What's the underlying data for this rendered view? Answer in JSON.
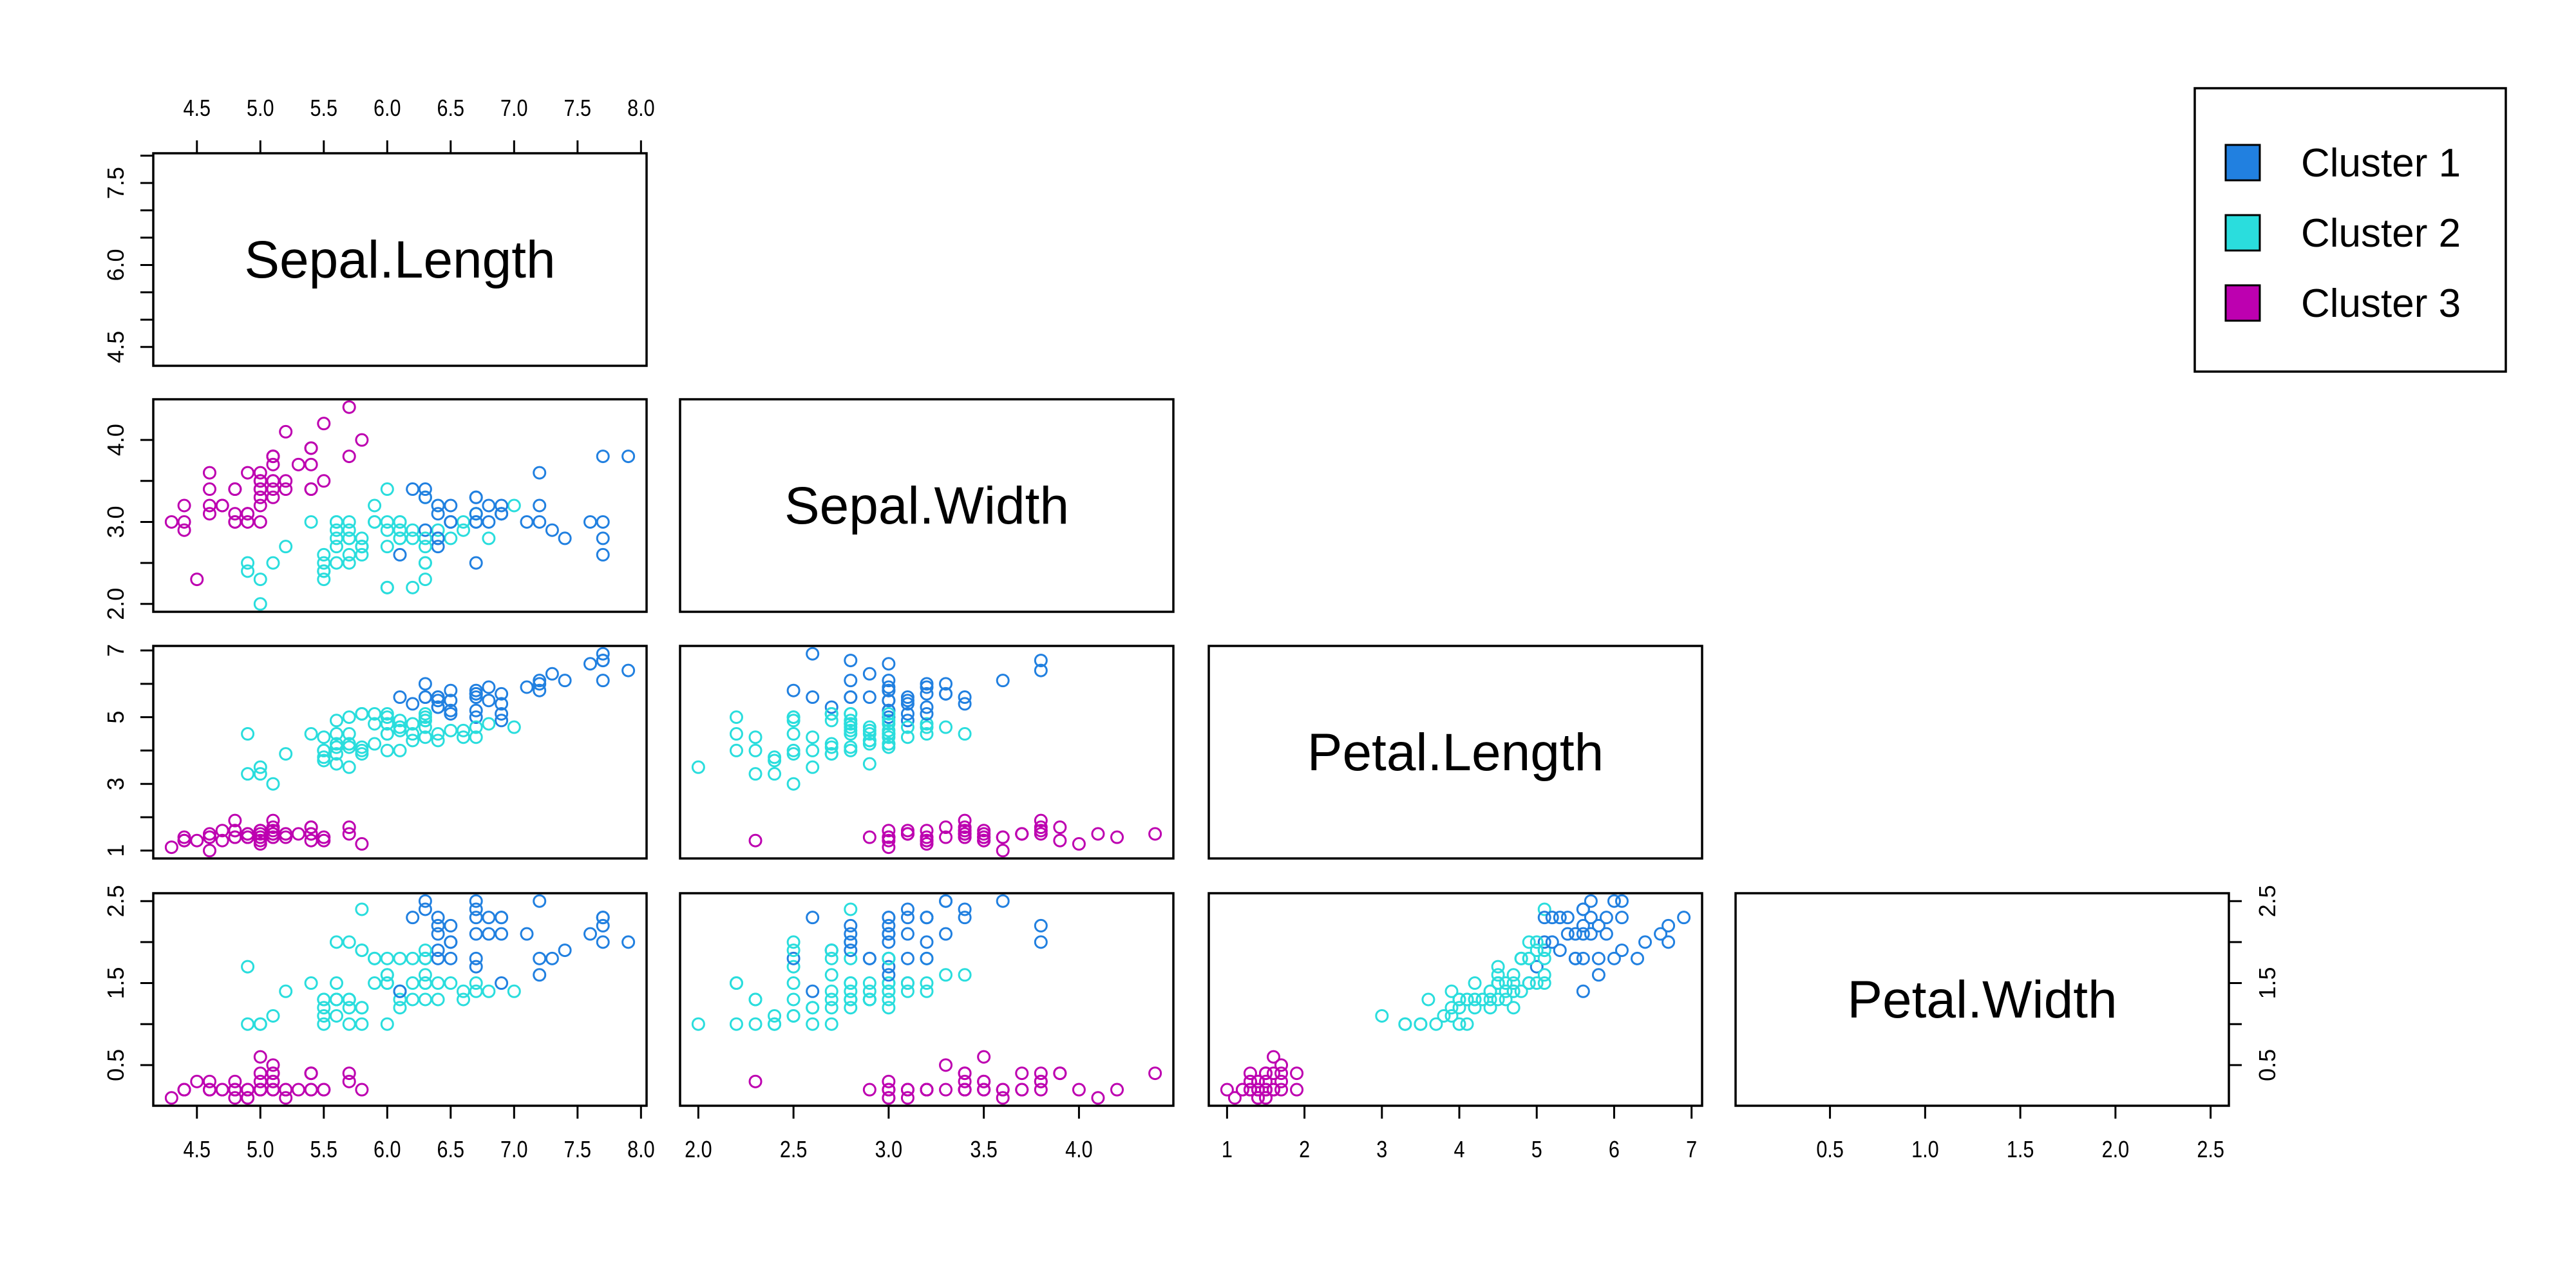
{
  "chart_data": {
    "type": "scatter",
    "title": "",
    "variables": [
      "Sepal.Length",
      "Sepal.Width",
      "Petal.Length",
      "Petal.Width"
    ],
    "ranges": [
      [
        4.3,
        7.9
      ],
      [
        2.0,
        4.4
      ],
      [
        1.0,
        6.9
      ],
      [
        0.1,
        2.5
      ]
    ],
    "axes": {
      "top": {
        "var": 0,
        "ticks": [
          4.5,
          5.0,
          5.5,
          6.0,
          6.5,
          7.0,
          7.5,
          8.0
        ],
        "labels": [
          "4.5",
          "5.0",
          "5.5",
          "6.0",
          "6.5",
          "7.0",
          "7.5",
          "8.0"
        ]
      },
      "left": [
        {
          "var": 0,
          "ticks": [
            4.5,
            5.0,
            5.5,
            6.0,
            6.5,
            7.0,
            7.5,
            8.0
          ],
          "labels": [
            "4.5",
            "",
            "",
            "6.0",
            "",
            "",
            "7.5",
            ""
          ]
        },
        {
          "var": 1,
          "ticks": [
            2.0,
            2.5,
            3.0,
            3.5,
            4.0
          ],
          "labels": [
            "2.0",
            "",
            "3.0",
            "",
            "4.0"
          ]
        },
        {
          "var": 2,
          "ticks": [
            1,
            2,
            3,
            4,
            5,
            6,
            7
          ],
          "labels": [
            "1",
            "",
            "3",
            "",
            "5",
            "",
            "7"
          ]
        },
        {
          "var": 3,
          "ticks": [
            0.5,
            1.0,
            1.5,
            2.0,
            2.5
          ],
          "labels": [
            "0.5",
            "",
            "1.5",
            "",
            "2.5"
          ]
        }
      ],
      "right": {
        "var": 3,
        "ticks": [
          0.5,
          1.0,
          1.5,
          2.0,
          2.5
        ],
        "labels": [
          "0.5",
          "",
          "1.5",
          "",
          "2.5"
        ]
      },
      "bottom": [
        {
          "var": 0,
          "ticks": [
            4.5,
            5.0,
            5.5,
            6.0,
            6.5,
            7.0,
            7.5,
            8.0
          ],
          "labels": [
            "4.5",
            "5.0",
            "5.5",
            "6.0",
            "6.5",
            "7.0",
            "7.5",
            "8.0"
          ]
        },
        {
          "var": 1,
          "ticks": [
            2.0,
            2.5,
            3.0,
            3.5,
            4.0
          ],
          "labels": [
            "2.0",
            "2.5",
            "3.0",
            "3.5",
            "4.0"
          ]
        },
        {
          "var": 2,
          "ticks": [
            1,
            2,
            3,
            4,
            5,
            6,
            7
          ],
          "labels": [
            "1",
            "2",
            "3",
            "4",
            "5",
            "6",
            "7"
          ]
        },
        {
          "var": 3,
          "ticks": [
            0.5,
            1.0,
            1.5,
            2.0,
            2.5
          ],
          "labels": [
            "0.5",
            "1.0",
            "1.5",
            "2.0",
            "2.5"
          ]
        }
      ]
    },
    "legend": {
      "placement": "top-right",
      "entries": [
        {
          "label": "Cluster 1",
          "color": "#2180E0"
        },
        {
          "label": "Cluster 2",
          "color": "#2ADDDD"
        },
        {
          "label": "Cluster 3",
          "color": "#BD00B0"
        }
      ]
    },
    "points_columns": [
      "Sepal.Length",
      "Sepal.Width",
      "Petal.Length",
      "Petal.Width",
      "cluster"
    ],
    "points": [
      [
        5.1,
        3.5,
        1.4,
        0.2,
        3
      ],
      [
        4.9,
        3.0,
        1.4,
        0.2,
        3
      ],
      [
        4.7,
        3.2,
        1.3,
        0.2,
        3
      ],
      [
        4.6,
        3.1,
        1.5,
        0.2,
        3
      ],
      [
        5.0,
        3.6,
        1.4,
        0.2,
        3
      ],
      [
        5.4,
        3.9,
        1.7,
        0.4,
        3
      ],
      [
        4.6,
        3.4,
        1.4,
        0.3,
        3
      ],
      [
        5.0,
        3.4,
        1.5,
        0.2,
        3
      ],
      [
        4.4,
        2.9,
        1.4,
        0.2,
        3
      ],
      [
        4.9,
        3.1,
        1.5,
        0.1,
        3
      ],
      [
        5.4,
        3.7,
        1.5,
        0.2,
        3
      ],
      [
        4.8,
        3.4,
        1.6,
        0.2,
        3
      ],
      [
        4.8,
        3.0,
        1.4,
        0.1,
        3
      ],
      [
        4.3,
        3.0,
        1.1,
        0.1,
        3
      ],
      [
        5.8,
        4.0,
        1.2,
        0.2,
        3
      ],
      [
        5.7,
        4.4,
        1.5,
        0.4,
        3
      ],
      [
        5.4,
        3.9,
        1.3,
        0.4,
        3
      ],
      [
        5.1,
        3.5,
        1.4,
        0.3,
        3
      ],
      [
        5.7,
        3.8,
        1.7,
        0.3,
        3
      ],
      [
        5.1,
        3.8,
        1.5,
        0.3,
        3
      ],
      [
        5.4,
        3.4,
        1.7,
        0.2,
        3
      ],
      [
        5.1,
        3.7,
        1.5,
        0.4,
        3
      ],
      [
        4.6,
        3.6,
        1.0,
        0.2,
        3
      ],
      [
        5.1,
        3.3,
        1.7,
        0.5,
        3
      ],
      [
        4.8,
        3.4,
        1.9,
        0.2,
        3
      ],
      [
        5.0,
        3.0,
        1.6,
        0.2,
        3
      ],
      [
        5.0,
        3.4,
        1.6,
        0.4,
        3
      ],
      [
        5.2,
        3.5,
        1.5,
        0.2,
        3
      ],
      [
        5.2,
        3.4,
        1.4,
        0.2,
        3
      ],
      [
        4.7,
        3.2,
        1.6,
        0.2,
        3
      ],
      [
        4.8,
        3.1,
        1.6,
        0.2,
        3
      ],
      [
        5.4,
        3.4,
        1.5,
        0.4,
        3
      ],
      [
        5.2,
        4.1,
        1.5,
        0.1,
        3
      ],
      [
        5.5,
        4.2,
        1.4,
        0.2,
        3
      ],
      [
        4.9,
        3.1,
        1.5,
        0.2,
        3
      ],
      [
        5.0,
        3.2,
        1.2,
        0.2,
        3
      ],
      [
        5.5,
        3.5,
        1.3,
        0.2,
        3
      ],
      [
        4.9,
        3.6,
        1.4,
        0.1,
        3
      ],
      [
        4.4,
        3.0,
        1.3,
        0.2,
        3
      ],
      [
        5.1,
        3.4,
        1.5,
        0.2,
        3
      ],
      [
        5.0,
        3.5,
        1.3,
        0.3,
        3
      ],
      [
        4.5,
        2.3,
        1.3,
        0.3,
        3
      ],
      [
        4.4,
        3.2,
        1.3,
        0.2,
        3
      ],
      [
        5.0,
        3.5,
        1.6,
        0.6,
        3
      ],
      [
        5.1,
        3.8,
        1.9,
        0.4,
        3
      ],
      [
        4.8,
        3.0,
        1.4,
        0.3,
        3
      ],
      [
        5.1,
        3.8,
        1.6,
        0.2,
        3
      ],
      [
        4.6,
        3.2,
        1.4,
        0.2,
        3
      ],
      [
        5.3,
        3.7,
        1.5,
        0.2,
        3
      ],
      [
        5.0,
        3.3,
        1.4,
        0.2,
        3
      ],
      [
        7.0,
        3.2,
        4.7,
        1.4,
        2
      ],
      [
        6.4,
        3.2,
        4.5,
        1.5,
        2
      ],
      [
        6.9,
        3.1,
        4.9,
        1.5,
        1
      ],
      [
        5.5,
        2.3,
        4.0,
        1.3,
        2
      ],
      [
        6.5,
        2.8,
        4.6,
        1.5,
        2
      ],
      [
        5.7,
        2.8,
        4.5,
        1.3,
        2
      ],
      [
        6.3,
        3.3,
        4.7,
        1.6,
        2
      ],
      [
        4.9,
        2.4,
        3.3,
        1.0,
        2
      ],
      [
        6.6,
        2.9,
        4.6,
        1.3,
        2
      ],
      [
        5.2,
        2.7,
        3.9,
        1.4,
        2
      ],
      [
        5.0,
        2.0,
        3.5,
        1.0,
        2
      ],
      [
        5.9,
        3.0,
        4.2,
        1.5,
        2
      ],
      [
        6.0,
        2.2,
        4.0,
        1.0,
        2
      ],
      [
        6.1,
        2.9,
        4.7,
        1.4,
        2
      ],
      [
        5.6,
        2.9,
        3.6,
        1.3,
        2
      ],
      [
        6.7,
        3.1,
        4.4,
        1.4,
        2
      ],
      [
        5.6,
        3.0,
        4.5,
        1.5,
        2
      ],
      [
        5.8,
        2.7,
        4.1,
        1.0,
        2
      ],
      [
        6.2,
        2.2,
        4.5,
        1.5,
        2
      ],
      [
        5.6,
        2.5,
        3.9,
        1.1,
        2
      ],
      [
        5.9,
        3.2,
        4.8,
        1.8,
        2
      ],
      [
        6.1,
        2.8,
        4.0,
        1.3,
        2
      ],
      [
        6.3,
        2.5,
        4.9,
        1.5,
        2
      ],
      [
        6.1,
        2.8,
        4.7,
        1.2,
        2
      ],
      [
        6.4,
        2.9,
        4.3,
        1.3,
        2
      ],
      [
        6.6,
        3.0,
        4.4,
        1.4,
        2
      ],
      [
        6.8,
        2.8,
        4.8,
        1.4,
        2
      ],
      [
        6.7,
        3.0,
        5.0,
        1.7,
        1
      ],
      [
        6.0,
        2.9,
        4.5,
        1.5,
        2
      ],
      [
        5.7,
        2.6,
        3.5,
        1.0,
        2
      ],
      [
        5.5,
        2.4,
        3.8,
        1.1,
        2
      ],
      [
        5.5,
        2.4,
        3.7,
        1.0,
        2
      ],
      [
        5.8,
        2.7,
        3.9,
        1.2,
        2
      ],
      [
        6.0,
        2.7,
        5.1,
        1.6,
        2
      ],
      [
        5.4,
        3.0,
        4.5,
        1.5,
        2
      ],
      [
        6.0,
        3.4,
        4.5,
        1.6,
        2
      ],
      [
        6.7,
        3.1,
        4.7,
        1.5,
        2
      ],
      [
        6.3,
        2.3,
        4.4,
        1.3,
        2
      ],
      [
        5.6,
        3.0,
        4.1,
        1.3,
        2
      ],
      [
        5.5,
        2.5,
        4.0,
        1.3,
        2
      ],
      [
        5.5,
        2.6,
        4.4,
        1.2,
        2
      ],
      [
        6.1,
        3.0,
        4.6,
        1.4,
        2
      ],
      [
        5.8,
        2.6,
        4.0,
        1.2,
        2
      ],
      [
        5.0,
        2.3,
        3.3,
        1.0,
        2
      ],
      [
        5.6,
        2.7,
        4.2,
        1.3,
        2
      ],
      [
        5.7,
        3.0,
        4.2,
        1.2,
        2
      ],
      [
        5.7,
        2.9,
        4.2,
        1.3,
        2
      ],
      [
        6.2,
        2.9,
        4.3,
        1.3,
        2
      ],
      [
        5.1,
        2.5,
        3.0,
        1.1,
        2
      ],
      [
        5.7,
        2.8,
        4.1,
        1.3,
        2
      ],
      [
        6.3,
        3.3,
        6.0,
        2.5,
        1
      ],
      [
        5.8,
        2.7,
        5.1,
        1.9,
        2
      ],
      [
        7.1,
        3.0,
        5.9,
        2.1,
        1
      ],
      [
        6.3,
        2.9,
        5.6,
        1.8,
        1
      ],
      [
        6.5,
        3.0,
        5.8,
        2.2,
        1
      ],
      [
        7.6,
        3.0,
        6.6,
        2.1,
        1
      ],
      [
        4.9,
        2.5,
        4.5,
        1.7,
        2
      ],
      [
        7.3,
        2.9,
        6.3,
        1.8,
        1
      ],
      [
        6.7,
        2.5,
        5.8,
        1.8,
        1
      ],
      [
        7.2,
        3.6,
        6.1,
        2.5,
        1
      ],
      [
        6.5,
        3.2,
        5.1,
        2.0,
        1
      ],
      [
        6.4,
        2.7,
        5.3,
        1.9,
        1
      ],
      [
        6.8,
        3.0,
        5.5,
        2.1,
        1
      ],
      [
        5.7,
        2.5,
        5.0,
        2.0,
        2
      ],
      [
        5.8,
        2.8,
        5.1,
        2.4,
        2
      ],
      [
        6.4,
        3.2,
        5.3,
        2.3,
        1
      ],
      [
        6.5,
        3.0,
        5.5,
        1.8,
        1
      ],
      [
        7.7,
        3.8,
        6.7,
        2.2,
        1
      ],
      [
        7.7,
        2.6,
        6.9,
        2.3,
        1
      ],
      [
        6.0,
        2.2,
        5.0,
        1.5,
        2
      ],
      [
        6.9,
        3.2,
        5.7,
        2.3,
        1
      ],
      [
        5.6,
        2.8,
        4.9,
        2.0,
        2
      ],
      [
        7.7,
        2.8,
        6.7,
        2.0,
        1
      ],
      [
        6.3,
        2.7,
        4.9,
        1.8,
        2
      ],
      [
        6.7,
        3.3,
        5.7,
        2.1,
        1
      ],
      [
        7.2,
        3.2,
        6.0,
        1.8,
        1
      ],
      [
        6.2,
        2.8,
        4.8,
        1.8,
        2
      ],
      [
        6.1,
        3.0,
        4.9,
        1.8,
        2
      ],
      [
        6.4,
        2.8,
        5.6,
        2.1,
        1
      ],
      [
        7.2,
        3.0,
        5.8,
        1.6,
        1
      ],
      [
        7.4,
        2.8,
        6.1,
        1.9,
        1
      ],
      [
        7.9,
        3.8,
        6.4,
        2.0,
        1
      ],
      [
        6.4,
        2.8,
        5.6,
        2.2,
        1
      ],
      [
        6.3,
        2.8,
        5.1,
        1.5,
        2
      ],
      [
        6.1,
        2.6,
        5.6,
        1.4,
        1
      ],
      [
        7.7,
        3.0,
        6.1,
        2.3,
        1
      ],
      [
        6.3,
        3.4,
        5.6,
        2.4,
        1
      ],
      [
        6.4,
        3.1,
        5.5,
        1.8,
        1
      ],
      [
        6.0,
        3.0,
        4.8,
        1.8,
        2
      ],
      [
        6.9,
        3.1,
        5.4,
        2.1,
        1
      ],
      [
        6.7,
        3.1,
        5.6,
        2.4,
        1
      ],
      [
        6.9,
        3.1,
        5.1,
        2.3,
        1
      ],
      [
        5.8,
        2.7,
        5.1,
        1.9,
        2
      ],
      [
        6.8,
        3.2,
        5.9,
        2.3,
        1
      ],
      [
        6.7,
        3.3,
        5.7,
        2.5,
        1
      ],
      [
        6.7,
        3.0,
        5.2,
        2.3,
        1
      ],
      [
        6.3,
        2.5,
        5.0,
        1.9,
        2
      ],
      [
        6.5,
        3.0,
        5.2,
        2.0,
        1
      ],
      [
        6.2,
        3.4,
        5.4,
        2.3,
        1
      ],
      [
        5.9,
        3.0,
        5.1,
        1.8,
        2
      ]
    ]
  }
}
